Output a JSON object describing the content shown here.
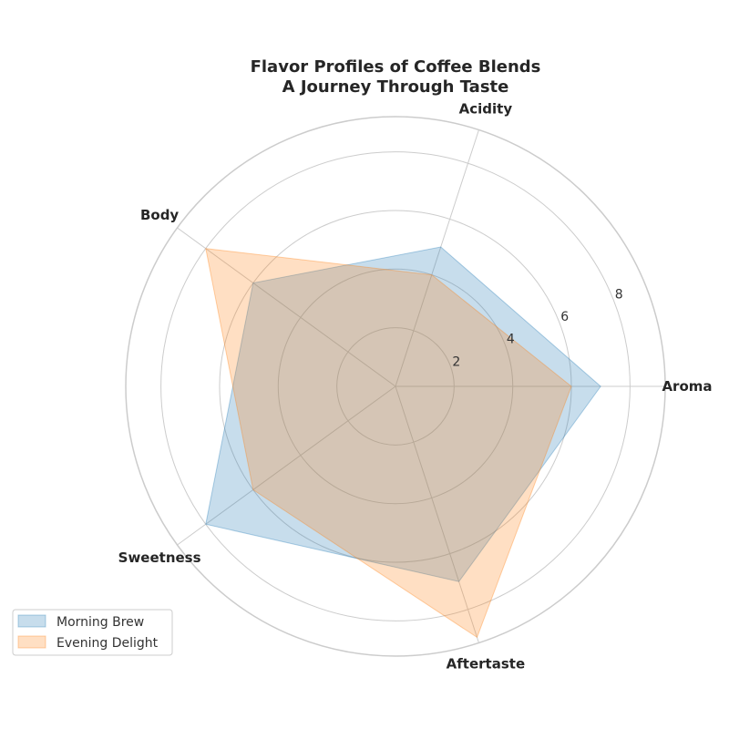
{
  "chart_data": {
    "type": "radar",
    "title_lines": [
      "Flavor Profiles of Coffee Blends",
      "A Journey Through Taste"
    ],
    "axes": [
      "Aroma",
      "Acidity",
      "Body",
      "Sweetness",
      "Aftertaste"
    ],
    "rlim": [
      0,
      9.2
    ],
    "rticks": [
      2,
      4,
      6,
      8
    ],
    "grid": true,
    "legend_position": "lower-left",
    "series": [
      {
        "name": "Morning Brew",
        "values": [
          7.0,
          5.0,
          6.0,
          8.0,
          7.0
        ],
        "color": "#1f77b4"
      },
      {
        "name": "Evening Delight",
        "values": [
          6.0,
          4.0,
          8.0,
          6.0,
          9.0
        ],
        "color": "#ff7f0e"
      }
    ]
  }
}
